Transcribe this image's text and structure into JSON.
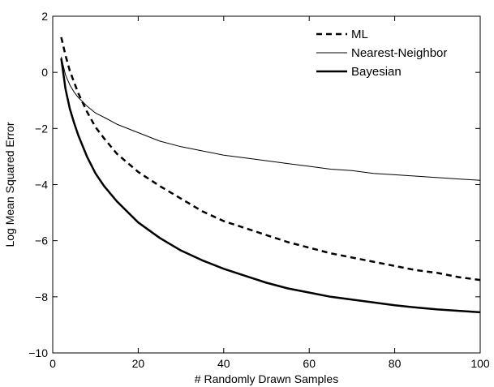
{
  "chart_data": {
    "type": "line",
    "title": "",
    "xlabel": "# Randomly Drawn Samples",
    "ylabel": "Log Mean Squared Error",
    "xlim": [
      0,
      100
    ],
    "ylim": [
      -10,
      2
    ],
    "xticks": [
      0,
      20,
      40,
      60,
      80,
      100
    ],
    "yticks": [
      -10,
      -8,
      -6,
      -4,
      -2,
      0,
      2
    ],
    "grid": false,
    "legend_position": "top-right",
    "x": [
      2,
      3,
      4,
      5,
      6,
      8,
      10,
      12,
      15,
      20,
      25,
      30,
      35,
      40,
      45,
      50,
      55,
      60,
      65,
      70,
      75,
      80,
      85,
      90,
      95,
      100
    ],
    "series": [
      {
        "name": "ML",
        "style": "dashed",
        "width": "thick",
        "color": "#000000",
        "values": [
          1.25,
          0.6,
          0.05,
          -0.35,
          -0.75,
          -1.4,
          -1.95,
          -2.35,
          -2.9,
          -3.55,
          -4.05,
          -4.5,
          -4.95,
          -5.3,
          -5.55,
          -5.8,
          -6.05,
          -6.25,
          -6.45,
          -6.6,
          -6.75,
          -6.9,
          -7.05,
          -7.15,
          -7.3,
          -7.4
        ]
      },
      {
        "name": "Nearest-Neighbor",
        "style": "solid",
        "width": "thin",
        "color": "#000000",
        "values": [
          0.55,
          -0.1,
          -0.45,
          -0.7,
          -0.9,
          -1.2,
          -1.45,
          -1.6,
          -1.85,
          -2.15,
          -2.45,
          -2.65,
          -2.8,
          -2.95,
          -3.05,
          -3.15,
          -3.25,
          -3.35,
          -3.45,
          -3.5,
          -3.6,
          -3.65,
          -3.7,
          -3.75,
          -3.8,
          -3.85
        ]
      },
      {
        "name": "Bayesian",
        "style": "solid",
        "width": "thick",
        "color": "#000000",
        "values": [
          0.5,
          -0.6,
          -1.3,
          -1.8,
          -2.25,
          -3.0,
          -3.6,
          -4.05,
          -4.6,
          -5.35,
          -5.9,
          -6.35,
          -6.7,
          -7.0,
          -7.25,
          -7.5,
          -7.7,
          -7.85,
          -8.0,
          -8.1,
          -8.2,
          -8.3,
          -8.38,
          -8.45,
          -8.5,
          -8.55
        ]
      }
    ]
  }
}
